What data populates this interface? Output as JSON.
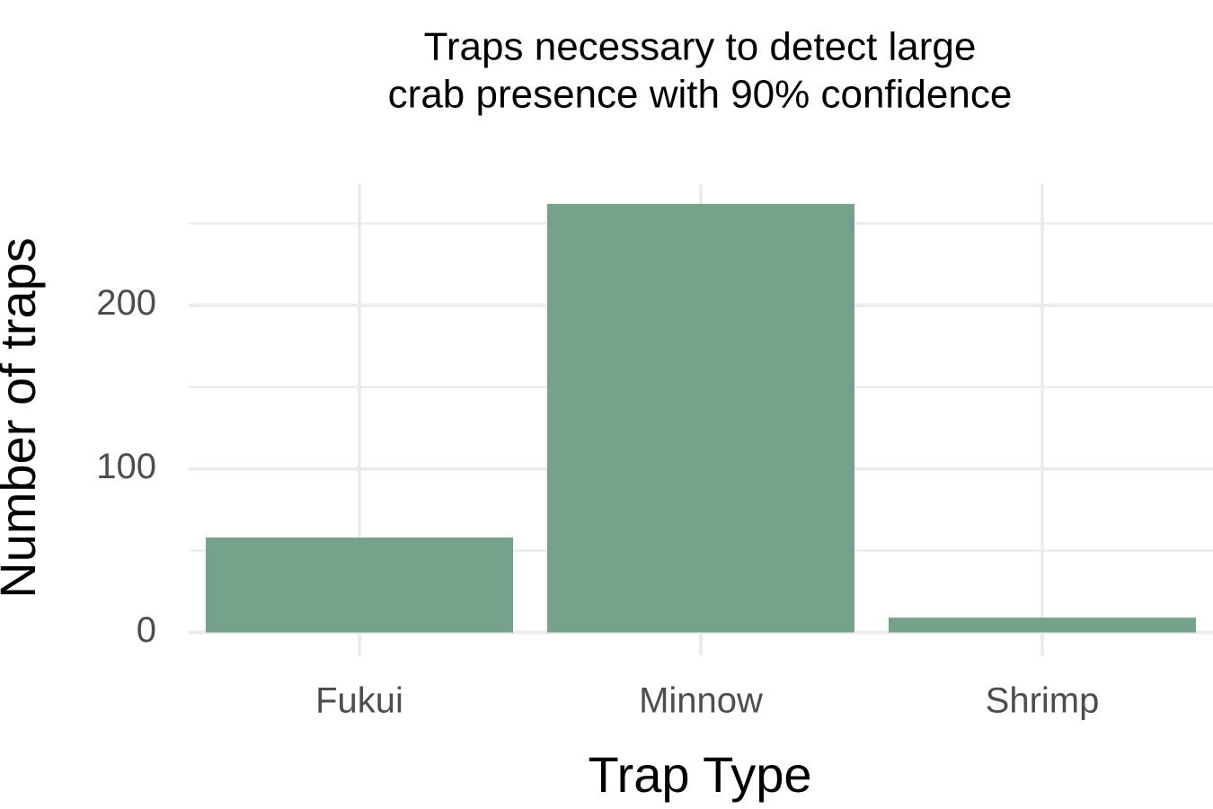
{
  "chart_data": {
    "type": "bar",
    "title": [
      "Traps necessary to detect large",
      "crab presence with 90% confidence"
    ],
    "x_label": "Trap Type",
    "y_label": "Number of traps",
    "categories": [
      "Fukui",
      "Minnow",
      "Shrimp"
    ],
    "values": [
      58,
      262,
      9
    ],
    "color": "#75a08a",
    "ylim": [
      -14,
      274
    ],
    "yticks": [
      0,
      100,
      200
    ],
    "y_minor_grid": [
      50,
      150,
      250
    ],
    "grid": true
  }
}
